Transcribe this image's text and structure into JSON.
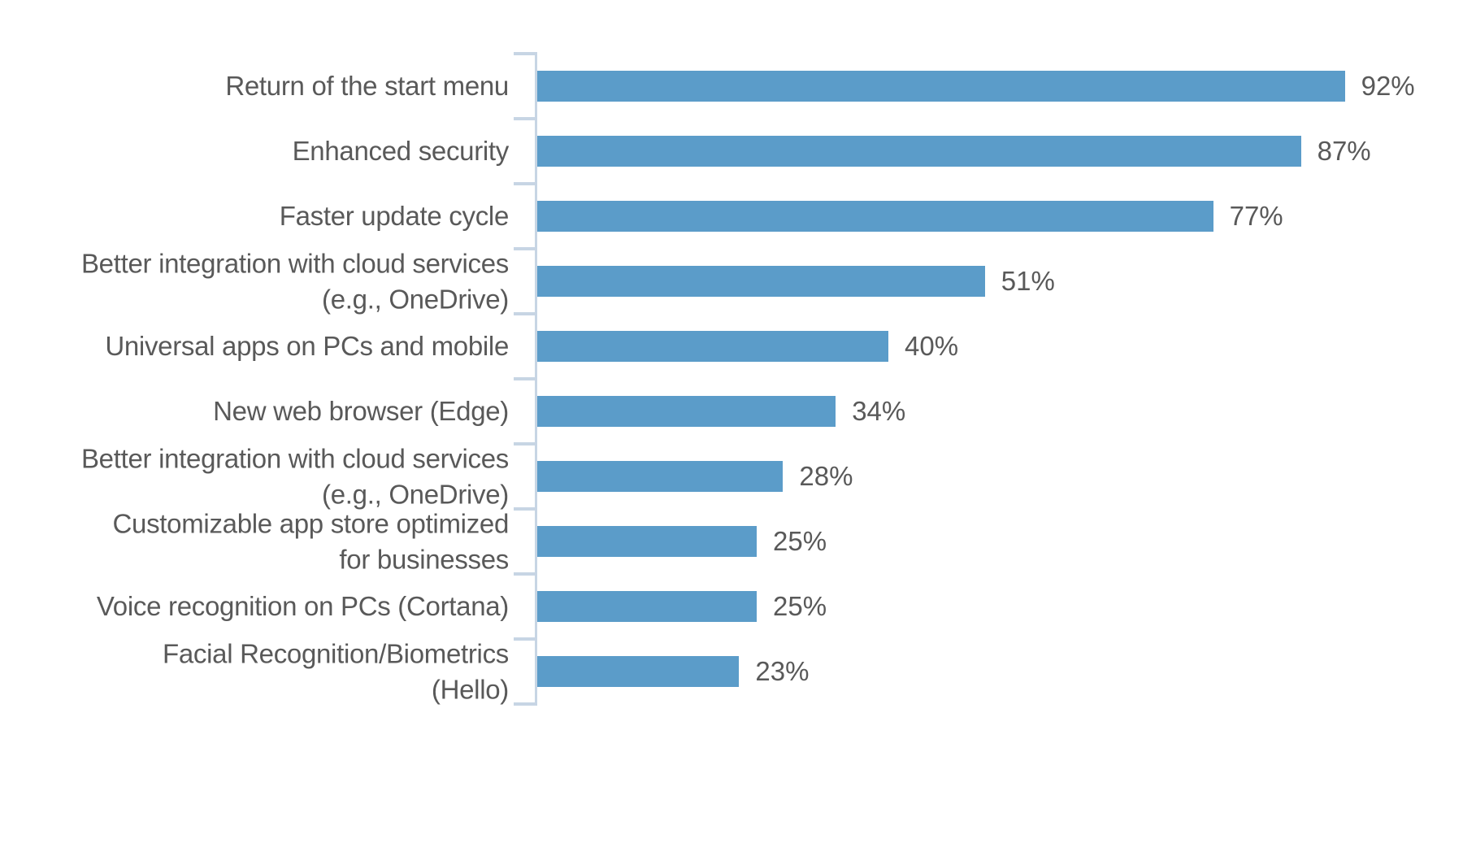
{
  "chart_data": {
    "type": "bar",
    "orientation": "horizontal",
    "title": "",
    "xlabel": "",
    "ylabel": "",
    "categories": [
      "Return of the start menu",
      "Enhanced security",
      "Faster update cycle",
      "Better integration with cloud services\n(e.g., OneDrive)",
      "Universal apps on PCs and mobile",
      "New web browser (Edge)",
      "Better integration with cloud services\n(e.g., OneDrive)",
      "Customizable app store optimized\nfor businesses",
      "Voice recognition on PCs (Cortana)",
      "Facial Recognition/Biometrics\n(Hello)"
    ],
    "values": [
      92,
      87,
      77,
      51,
      40,
      34,
      28,
      25,
      25,
      23
    ],
    "value_labels": [
      "92%",
      "87%",
      "77%",
      "51%",
      "40%",
      "34%",
      "28%",
      "25%",
      "25%",
      "23%"
    ],
    "unit": "%",
    "xlim": [
      0,
      100
    ],
    "grid": false,
    "legend_position": "none",
    "colors": {
      "bar": "#5B9CC9",
      "axis": "#C7D5E4",
      "label": "#595959",
      "background": "#FFFFFF"
    }
  }
}
